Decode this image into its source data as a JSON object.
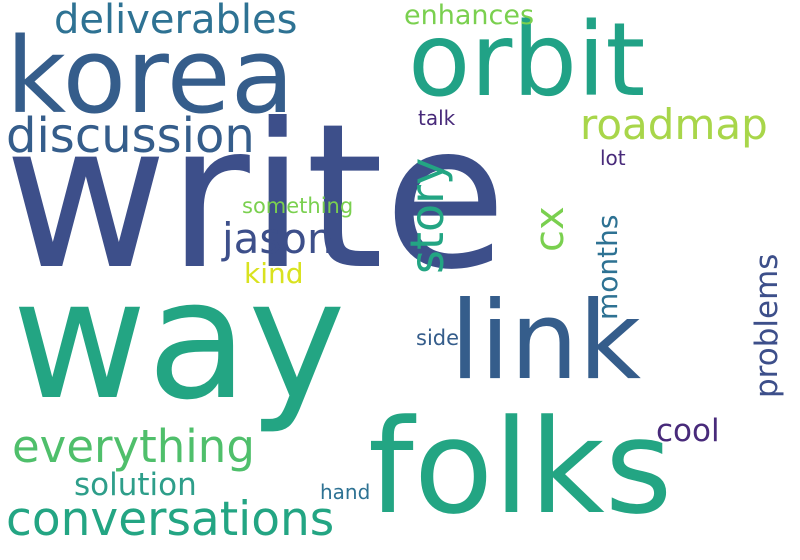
{
  "words": {
    "write": {
      "text": "write",
      "color": "#3d4f8a"
    },
    "way": {
      "text": "way",
      "color": "#23a583"
    },
    "folks": {
      "text": "folks",
      "color": "#23a583"
    },
    "korea": {
      "text": "korea",
      "color": "#355d8b"
    },
    "orbit": {
      "text": "orbit",
      "color": "#21a286"
    },
    "link": {
      "text": "link",
      "color": "#355d8b"
    },
    "discussion": {
      "text": "discussion",
      "color": "#355d8b"
    },
    "deliverables": {
      "text": "deliverables",
      "color": "#2e7293"
    },
    "conversations": {
      "text": "conversations",
      "color": "#23a583"
    },
    "everything": {
      "text": "everything",
      "color": "#4fbf6b"
    },
    "roadmap": {
      "text": "roadmap",
      "color": "#a8d64a"
    },
    "jason": {
      "text": "jason",
      "color": "#3d4f8a"
    },
    "story": {
      "text": "story",
      "color": "#23a583"
    },
    "cx": {
      "text": "cx",
      "color": "#7ad04f"
    },
    "months": {
      "text": "months",
      "color": "#2e7293"
    },
    "problems": {
      "text": "problems",
      "color": "#3d4f8a"
    },
    "enhances": {
      "text": "enhances",
      "color": "#7ad04f"
    },
    "solution": {
      "text": "solution",
      "color": "#2e9e8a"
    },
    "cool": {
      "text": "cool",
      "color": "#482a7a"
    },
    "kind": {
      "text": "kind",
      "color": "#d9e21f"
    },
    "something": {
      "text": "something",
      "color": "#7ad04f"
    },
    "talk": {
      "text": "talk",
      "color": "#482a7a"
    },
    "lot": {
      "text": "lot",
      "color": "#482a7a"
    },
    "side": {
      "text": "side",
      "color": "#355d8b"
    },
    "hand": {
      "text": "hand",
      "color": "#2e7293"
    }
  }
}
